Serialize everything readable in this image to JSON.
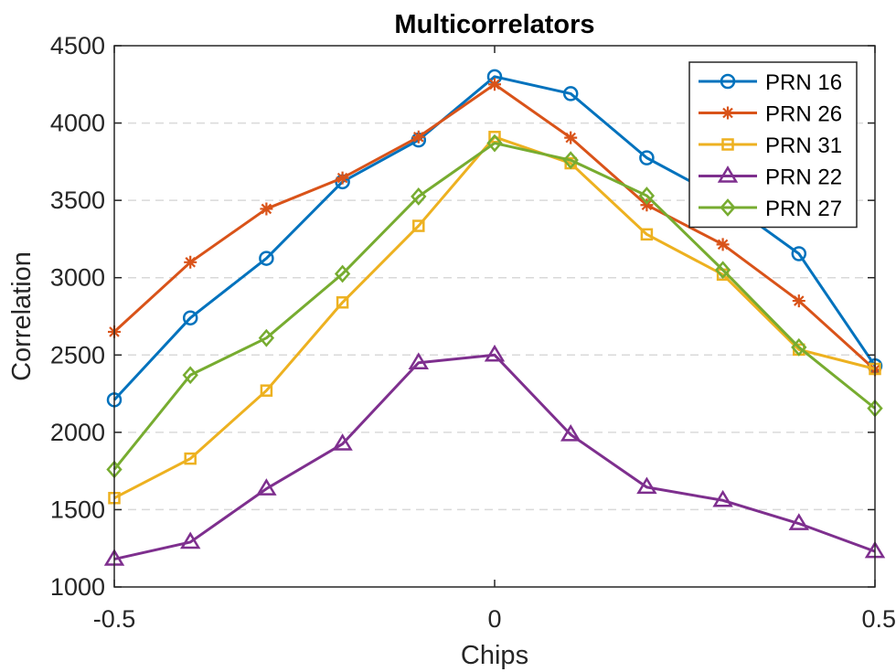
{
  "chart_data": {
    "type": "line",
    "title": "Multicorrelators",
    "xlabel": "Chips",
    "ylabel": "Correlation",
    "xlim": [
      -0.5,
      0.5
    ],
    "ylim": [
      1000,
      4500
    ],
    "xticks": [
      -0.5,
      0,
      0.5
    ],
    "xtick_labels": [
      "-0.5",
      "0",
      "0.5"
    ],
    "yticks": [
      1000,
      1500,
      2000,
      2500,
      3000,
      3500,
      4000,
      4500
    ],
    "ytick_labels": [
      "1000",
      "1500",
      "2000",
      "2500",
      "3000",
      "3500",
      "4000",
      "4500"
    ],
    "grid": "horizontal-dashed",
    "legend_position": "top-right",
    "x": [
      -0.5,
      -0.4,
      -0.3,
      -0.2,
      -0.1,
      0,
      0.1,
      0.2,
      0.3,
      0.4,
      0.5
    ],
    "series": [
      {
        "name": "PRN 16",
        "color": "#0072BD",
        "marker": "circle",
        "values": [
          2210,
          2740,
          3125,
          3620,
          3890,
          4300,
          4190,
          3775,
          3510,
          3155,
          2430
        ]
      },
      {
        "name": "PRN 26",
        "color": "#D95319",
        "marker": "asterisk",
        "values": [
          2650,
          3100,
          3445,
          3645,
          3910,
          4250,
          3905,
          3470,
          3215,
          2850,
          2405
        ]
      },
      {
        "name": "PRN 31",
        "color": "#EDB120",
        "marker": "square",
        "values": [
          1575,
          1830,
          2270,
          2840,
          3335,
          3910,
          3740,
          3280,
          3020,
          2535,
          2410
        ]
      },
      {
        "name": "PRN 22",
        "color": "#7E2F8E",
        "marker": "triangle",
        "values": [
          1180,
          1290,
          1635,
          1925,
          2450,
          2500,
          1985,
          1645,
          1560,
          1410,
          1230
        ]
      },
      {
        "name": "PRN 27",
        "color": "#77AC30",
        "marker": "diamond",
        "values": [
          1760,
          2370,
          2610,
          3025,
          3525,
          3870,
          3760,
          3530,
          3050,
          2550,
          2155
        ]
      }
    ]
  }
}
